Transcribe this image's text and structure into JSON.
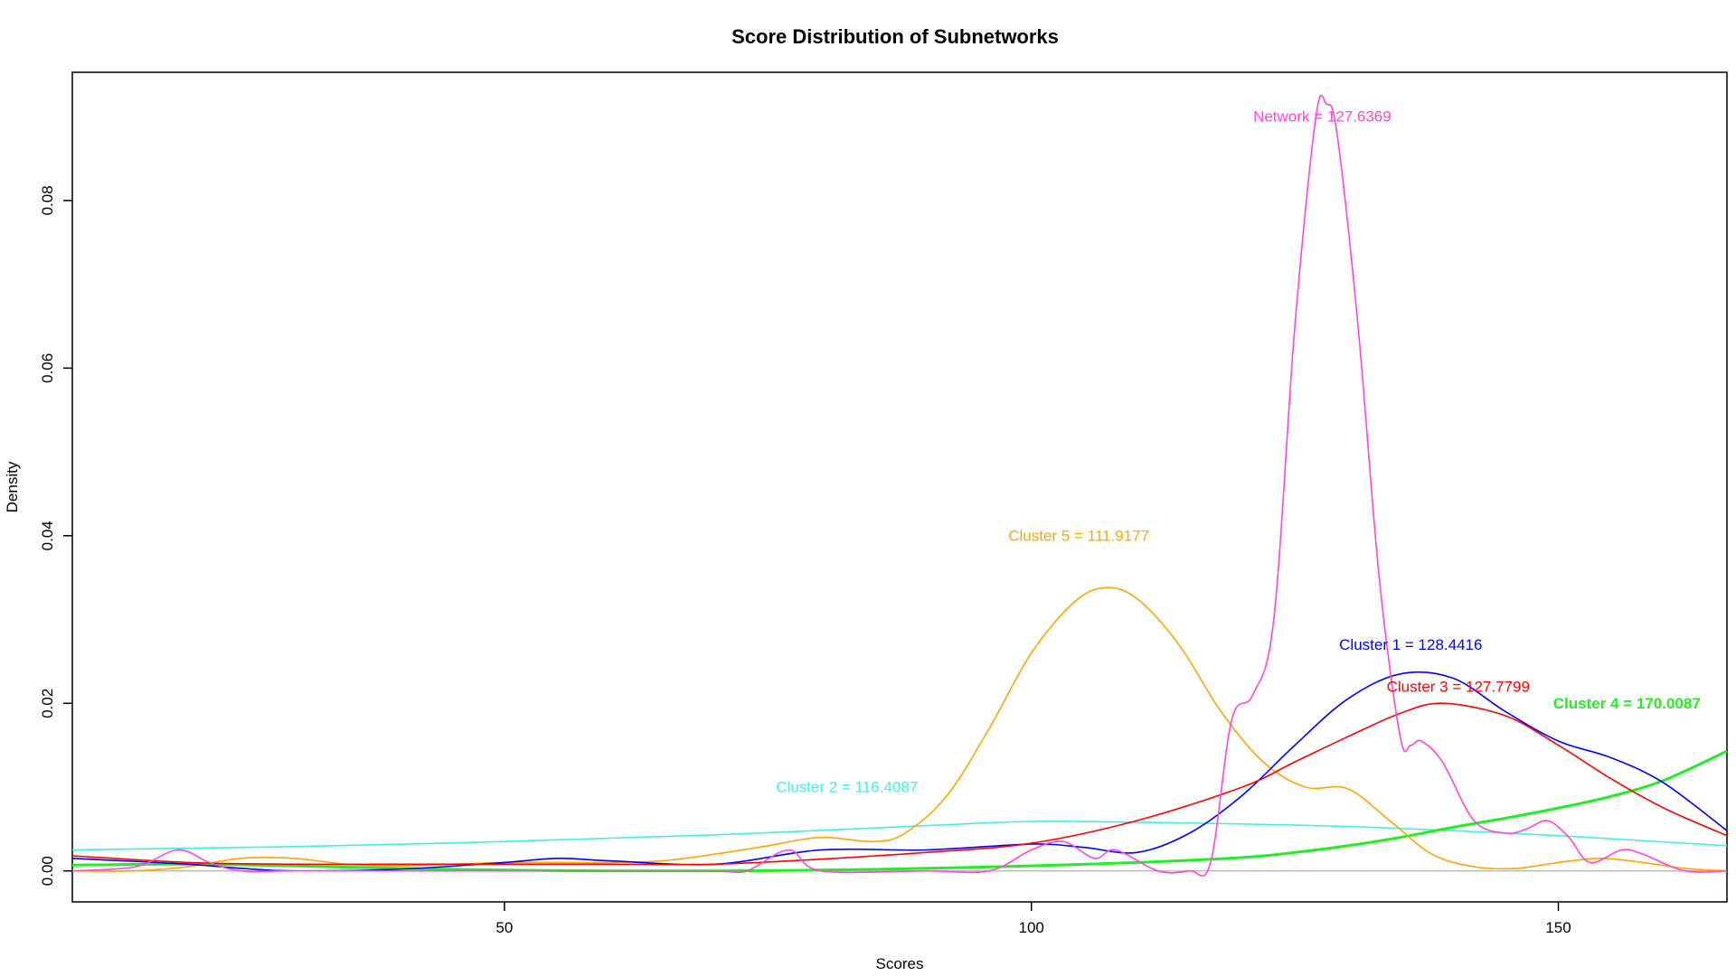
{
  "chart_data": {
    "type": "line",
    "title": "Score Distribution of Subnetworks",
    "xlabel": "Scores",
    "ylabel": "Density",
    "xlim": [
      9,
      166
    ],
    "ylim": [
      -0.0037,
      0.0953
    ],
    "x_ticks": [
      50,
      100,
      150
    ],
    "x_tick_labels": [
      "50",
      "100",
      "150"
    ],
    "y_ticks": [
      0.0,
      0.02,
      0.04,
      0.06,
      0.08
    ],
    "y_tick_labels": [
      "0.00",
      "0.02",
      "0.04",
      "0.06",
      "0.08"
    ],
    "baseline": 0,
    "grid": false,
    "legend": "none",
    "series": [
      {
        "name": "Cluster 2",
        "color": "#40f0e0",
        "x": [
          9,
          30,
          50,
          70,
          90,
          100,
          110,
          120,
          130,
          140,
          150,
          166
        ],
        "y": [
          0.0025,
          0.0029,
          0.0035,
          0.0043,
          0.0054,
          0.0059,
          0.0058,
          0.0056,
          0.0053,
          0.0048,
          0.0042,
          0.003
        ]
      },
      {
        "name": "Cluster 4",
        "color": "#22ee22",
        "x": [
          9,
          20,
          30,
          40,
          50,
          60,
          70,
          80,
          90,
          100,
          110,
          120,
          125,
          130,
          135,
          140,
          145,
          150,
          155,
          160,
          166
        ],
        "y": [
          0.0007,
          0.0008,
          0.0006,
          0.0003,
          0.0001,
          0.0,
          0.0,
          0.0001,
          0.0003,
          0.0006,
          0.001,
          0.0016,
          0.0022,
          0.003,
          0.004,
          0.0052,
          0.0063,
          0.0075,
          0.0089,
          0.0108,
          0.0143
        ]
      },
      {
        "name": "Cluster 5",
        "color": "#ffa500",
        "x": [
          9,
          15,
          20,
          25,
          30,
          35,
          40,
          45,
          50,
          55,
          60,
          65,
          70,
          75,
          80,
          85,
          88,
          92,
          96,
          100,
          104,
          107,
          110,
          114,
          118,
          122,
          126,
          130,
          134,
          138,
          142,
          146,
          150,
          154,
          158,
          162,
          166
        ],
        "y": [
          0.0,
          0.0,
          0.0005,
          0.0015,
          0.0015,
          0.0008,
          0.0006,
          0.0008,
          0.001,
          0.001,
          0.001,
          0.0012,
          0.002,
          0.003,
          0.004,
          0.0035,
          0.0045,
          0.009,
          0.017,
          0.026,
          0.032,
          0.0338,
          0.0325,
          0.027,
          0.019,
          0.013,
          0.01,
          0.0098,
          0.006,
          0.002,
          0.0005,
          0.0003,
          0.001,
          0.0015,
          0.001,
          0.0003,
          0.0
        ]
      },
      {
        "name": "Cluster 1",
        "color": "#0000ff",
        "x": [
          9,
          20,
          25,
          30,
          40,
          50,
          55,
          60,
          70,
          80,
          90,
          100,
          105,
          110,
          115,
          120,
          125,
          130,
          135,
          140,
          145,
          150,
          155,
          160,
          166
        ],
        "y": [
          0.0015,
          0.0008,
          0.0003,
          0.0,
          0.0002,
          0.001,
          0.0015,
          0.0012,
          0.0008,
          0.0025,
          0.0025,
          0.0032,
          0.0028,
          0.0022,
          0.0045,
          0.009,
          0.015,
          0.0205,
          0.0235,
          0.023,
          0.019,
          0.0155,
          0.0135,
          0.0105,
          0.0048
        ]
      },
      {
        "name": "Cluster 3",
        "color": "#ff0000",
        "x": [
          9,
          20,
          30,
          40,
          50,
          60,
          70,
          80,
          90,
          100,
          110,
          120,
          125,
          130,
          135,
          139,
          145,
          150,
          155,
          160,
          166
        ],
        "y": [
          0.0018,
          0.001,
          0.0008,
          0.0008,
          0.0008,
          0.0008,
          0.0008,
          0.0014,
          0.0022,
          0.0033,
          0.006,
          0.01,
          0.013,
          0.016,
          0.0188,
          0.02,
          0.0185,
          0.015,
          0.011,
          0.0075,
          0.0042
        ]
      },
      {
        "name": "Network",
        "color": "#ff44dd",
        "x": [
          9,
          15,
          19,
          22,
          25,
          30,
          40,
          50,
          60,
          70,
          73,
          77,
          80,
          90,
          96,
          100,
          103,
          106,
          108,
          112,
          115,
          117,
          119,
          121,
          123,
          125,
          127,
          128,
          129,
          131,
          133,
          135,
          136,
          137,
          139,
          142,
          145,
          147,
          149,
          151,
          153,
          156,
          158,
          162,
          166
        ],
        "y": [
          0.0,
          0.0005,
          0.0025,
          0.001,
          0.0,
          0.0,
          0.0,
          0.0,
          0.0,
          0.0,
          0.0,
          0.0025,
          0.0,
          0.0,
          0.0,
          0.0025,
          0.0035,
          0.0015,
          0.0025,
          0.0,
          0.0,
          0.001,
          0.018,
          0.021,
          0.03,
          0.065,
          0.09,
          0.0915,
          0.088,
          0.065,
          0.035,
          0.016,
          0.015,
          0.0155,
          0.013,
          0.006,
          0.0045,
          0.005,
          0.006,
          0.004,
          0.001,
          0.0025,
          0.002,
          0.0,
          0.0
        ]
      }
    ],
    "annotations": [
      {
        "text": "Network = 127.6369",
        "color": "#ff44dd",
        "x": 127.6,
        "y": 0.0894,
        "bold": false
      },
      {
        "text": "Cluster 5 = 111.9177",
        "color": "#ffa500",
        "x": 104.5,
        "y": 0.0394,
        "bold": false
      },
      {
        "text": "Cluster 1 = 128.4416",
        "color": "#0000ff",
        "x": 136.0,
        "y": 0.0264,
        "bold": false
      },
      {
        "text": "Cluster 3 = 127.7799",
        "color": "#ff0000",
        "x": 140.5,
        "y": 0.0214,
        "bold": false
      },
      {
        "text": "Cluster 4 = 170.0087",
        "color": "#22ee22",
        "x": 156.5,
        "y": 0.0194,
        "bold": true
      },
      {
        "text": "Cluster 2 = 116.4087",
        "color": "#40f0e0",
        "x": 82.5,
        "y": 0.0094,
        "bold": false
      }
    ]
  },
  "colors": {
    "axis": "#000000",
    "baseline": "#bebebe",
    "background": "#ffffff"
  }
}
